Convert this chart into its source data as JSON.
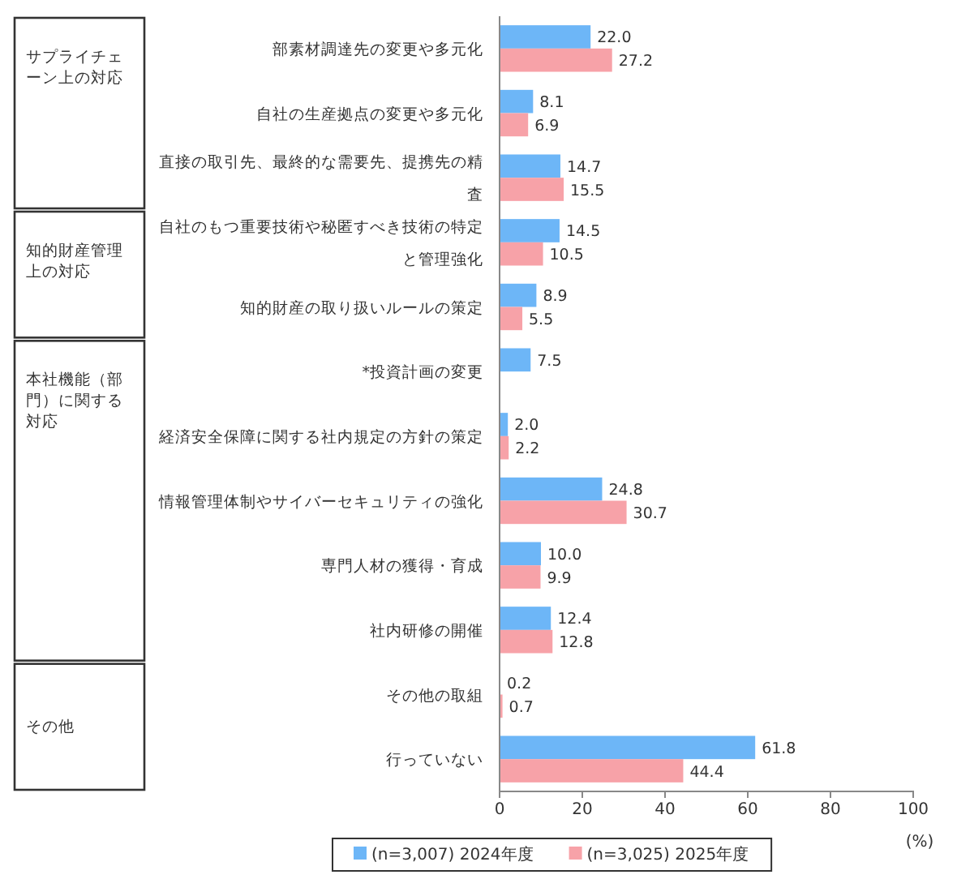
{
  "chart_data": {
    "type": "bar",
    "orientation": "horizontal",
    "xlabel": "(%)",
    "categories": [
      "部素材調達先の変更や多元化",
      "自社の生産拠点の変更や多元化",
      "直接の取引先、最終的な需要先、提携先の精査",
      "自社のもつ重要技術や秘匿すべき技術の特定と管理強化",
      "知的財産の取り扱いルールの策定",
      "*投資計画の変更",
      "経済安全保障に関する社内規定の方針の策定",
      "情報管理体制やサイバーセキュリティの強化",
      "専門人材の獲得・育成",
      "社内研修の開催",
      "その他の取組",
      "行っていない"
    ],
    "series": [
      {
        "name": "(n=3,007) 2024年度",
        "color": "#6db6f7",
        "values": [
          22.0,
          8.1,
          14.7,
          14.5,
          8.9,
          7.5,
          2.0,
          24.8,
          10.0,
          12.4,
          0.2,
          61.8
        ],
        "value_labels": [
          "22.0",
          "8.1",
          "14.7",
          "14.5",
          "8.9",
          "7.5",
          "2.0",
          "24.8",
          "10.0",
          "12.4",
          "0.2",
          "61.8"
        ]
      },
      {
        "name": "(n=3,025) 2025年度",
        "color": "#f7a2a8",
        "values": [
          27.2,
          6.9,
          15.5,
          10.5,
          5.5,
          null,
          2.2,
          30.7,
          9.9,
          12.8,
          0.7,
          44.4
        ],
        "value_labels": [
          "27.2",
          "6.9",
          "15.5",
          "10.5",
          "5.5",
          null,
          "2.2",
          "30.7",
          "9.9",
          "12.8",
          "0.7",
          "44.4"
        ]
      }
    ],
    "xlim": [
      0,
      100
    ],
    "xticks": [
      0,
      20,
      40,
      60,
      80,
      100
    ],
    "legend": "bottom",
    "annotations": [
      "サプライチェーン上の対応",
      "知的財産管理上の対応",
      "本社機能（部門）に関する対応",
      "その他"
    ]
  }
}
